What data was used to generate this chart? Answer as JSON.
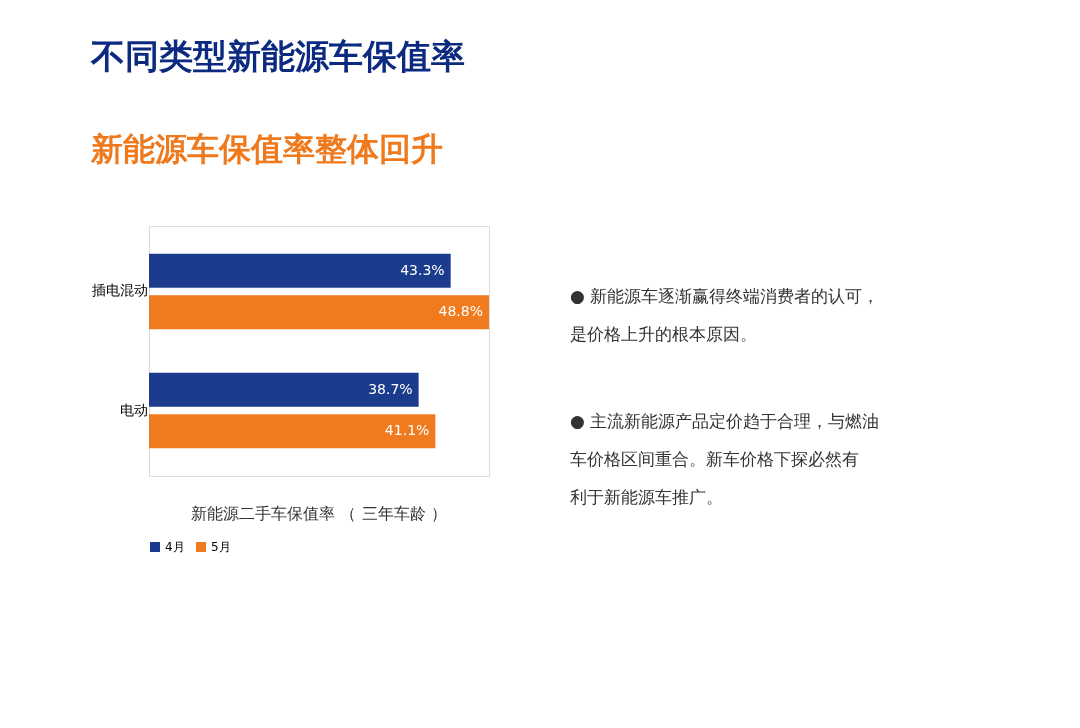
{
  "chart_data": {
    "type": "bar",
    "orientation": "horizontal",
    "title": "不同类型新能源车保值率",
    "subtitle": "新能源车保值率整体回升",
    "categories": [
      "插电混动",
      "电动"
    ],
    "series": [
      {
        "name": "4月",
        "color": "#1b3b8c",
        "values": [
          43.3,
          38.7
        ],
        "value_labels": [
          "43.3%",
          "38.7%"
        ]
      },
      {
        "name": "5月",
        "color": "#f07b1f",
        "values": [
          48.8,
          41.1
        ],
        "value_labels": [
          "48.8%",
          "41.1%"
        ]
      }
    ],
    "legend": "bottom",
    "grid": false,
    "annotations": [
      "新能源二手车保值率 （ 三年车龄 ）",
      "● 新能源车逐渐赢得终端消费者的认可，是价格上升的根本原因。",
      "● 主流新能源产品定价趋于合理，与燃油车价格区间重合。新车价格下探必然有利于新能源车推广。"
    ]
  }
}
